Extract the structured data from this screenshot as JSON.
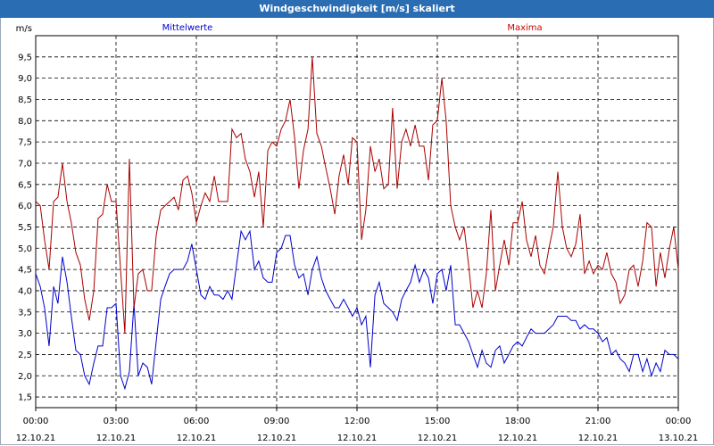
{
  "window": {
    "title": "Windgeschwindigkeit [m/s] skaliert"
  },
  "legend": {
    "series1": "Mittelwerte",
    "series2": "Maxima"
  },
  "colors": {
    "titlebar": "#2a6db2",
    "mittelwerte": "#0000cc",
    "maxima": "#aa0000",
    "grid": "#000000"
  },
  "chart_data": {
    "type": "line",
    "ylabel": "m/s",
    "ylim": [
      1.25,
      10.0
    ],
    "yticks": [
      1.5,
      2.0,
      2.5,
      3.0,
      3.5,
      4.0,
      4.5,
      5.0,
      5.5,
      6.0,
      6.5,
      7.0,
      7.5,
      8.0,
      8.5,
      9.0,
      9.5
    ],
    "ytick_labels": [
      "1,5",
      "2,0",
      "2,5",
      "3,0",
      "3,5",
      "4,0",
      "4,5",
      "5,0",
      "5,5",
      "6,0",
      "6,5",
      "7,0",
      "7,5",
      "8,0",
      "8,5",
      "9,0",
      "9,5"
    ],
    "xlim_hours": [
      0,
      24
    ],
    "xticks": [
      {
        "h": 0,
        "time": "00:00",
        "date": "12.10.21"
      },
      {
        "h": 3,
        "time": "03:00",
        "date": "12.10.21"
      },
      {
        "h": 6,
        "time": "06:00",
        "date": "12.10.21"
      },
      {
        "h": 9,
        "time": "09:00",
        "date": "12.10.21"
      },
      {
        "h": 12,
        "time": "12:00",
        "date": "12.10.21"
      },
      {
        "h": 15,
        "time": "15:00",
        "date": "12.10.21"
      },
      {
        "h": 18,
        "time": "18:00",
        "date": "12.10.21"
      },
      {
        "h": 21,
        "time": "21:00",
        "date": "12.10.21"
      },
      {
        "h": 24,
        "time": "00:00",
        "date": "13.10.21"
      }
    ],
    "series": [
      {
        "name": "Mittelwerte",
        "x": [
          0.0,
          0.17,
          0.33,
          0.5,
          0.67,
          0.83,
          1.0,
          1.17,
          1.33,
          1.5,
          1.67,
          1.83,
          2.0,
          2.17,
          2.33,
          2.5,
          2.67,
          2.83,
          3.0,
          3.17,
          3.33,
          3.5,
          3.67,
          3.83,
          4.0,
          4.17,
          4.33,
          4.5,
          4.67,
          4.83,
          5.0,
          5.17,
          5.33,
          5.5,
          5.67,
          5.83,
          6.0,
          6.17,
          6.33,
          6.5,
          6.67,
          6.83,
          7.0,
          7.17,
          7.33,
          7.5,
          7.67,
          7.83,
          8.0,
          8.17,
          8.33,
          8.5,
          8.67,
          8.83,
          9.0,
          9.17,
          9.33,
          9.5,
          9.67,
          9.83,
          10.0,
          10.17,
          10.33,
          10.5,
          10.67,
          10.83,
          11.0,
          11.17,
          11.33,
          11.5,
          11.67,
          11.83,
          12.0,
          12.17,
          12.33,
          12.5,
          12.67,
          12.83,
          13.0,
          13.17,
          13.33,
          13.5,
          13.67,
          13.83,
          14.0,
          14.17,
          14.33,
          14.5,
          14.67,
          14.83,
          15.0,
          15.17,
          15.33,
          15.5,
          15.67,
          15.83,
          16.0,
          16.17,
          16.33,
          16.5,
          16.67,
          16.83,
          17.0,
          17.17,
          17.33,
          17.5,
          17.67,
          17.83,
          18.0,
          18.17,
          18.33,
          18.5,
          18.67,
          18.83,
          19.0,
          19.17,
          19.33,
          19.5,
          19.67,
          19.83,
          20.0,
          20.17,
          20.33,
          20.5,
          20.67,
          20.83,
          21.0,
          21.17,
          21.33,
          21.5,
          21.67,
          21.83,
          22.0,
          22.17,
          22.33,
          22.5,
          22.67,
          22.83,
          23.0,
          23.17,
          23.33,
          23.5,
          23.67,
          23.83,
          24.0
        ],
        "values": [
          4.4,
          4.1,
          3.6,
          2.7,
          4.1,
          3.7,
          4.8,
          4.2,
          3.4,
          2.6,
          2.5,
          2.0,
          1.8,
          2.3,
          2.7,
          2.7,
          3.6,
          3.6,
          3.7,
          2.0,
          1.7,
          2.1,
          3.7,
          2.0,
          2.3,
          2.2,
          1.8,
          2.8,
          3.8,
          4.1,
          4.4,
          4.5,
          4.5,
          4.5,
          4.7,
          5.1,
          4.5,
          3.9,
          3.8,
          4.1,
          3.9,
          3.9,
          3.8,
          4.0,
          3.8,
          4.6,
          5.4,
          5.2,
          5.4,
          4.5,
          4.7,
          4.3,
          4.2,
          4.2,
          4.9,
          5.0,
          5.3,
          5.3,
          4.6,
          4.3,
          4.4,
          3.9,
          4.5,
          4.8,
          4.3,
          4.0,
          3.8,
          3.6,
          3.6,
          3.8,
          3.6,
          3.4,
          3.6,
          3.2,
          3.4,
          2.2,
          3.9,
          4.2,
          3.7,
          3.6,
          3.5,
          3.3,
          3.8,
          4.0,
          4.2,
          4.6,
          4.2,
          4.5,
          4.3,
          3.7,
          4.4,
          4.5,
          4.0,
          4.6,
          3.2,
          3.2,
          3.0,
          2.8,
          2.5,
          2.2,
          2.6,
          2.3,
          2.2,
          2.6,
          2.7,
          2.3,
          2.5,
          2.7,
          2.8,
          2.7,
          2.9,
          3.1,
          3.0,
          3.0,
          3.0,
          3.1,
          3.2,
          3.4,
          3.4,
          3.4,
          3.3,
          3.3,
          3.1,
          3.2,
          3.1,
          3.1,
          3.0,
          2.8,
          2.9,
          2.5,
          2.6,
          2.4,
          2.3,
          2.1,
          2.5,
          2.5,
          2.1,
          2.4,
          2.0,
          2.3,
          2.1,
          2.6,
          2.5,
          2.5,
          2.4
        ]
      },
      {
        "name": "Maxima",
        "x": [
          0.0,
          0.17,
          0.33,
          0.5,
          0.67,
          0.83,
          1.0,
          1.17,
          1.33,
          1.5,
          1.67,
          1.83,
          2.0,
          2.17,
          2.33,
          2.5,
          2.67,
          2.83,
          3.0,
          3.17,
          3.33,
          3.5,
          3.67,
          3.83,
          4.0,
          4.17,
          4.33,
          4.5,
          4.67,
          4.83,
          5.0,
          5.17,
          5.33,
          5.5,
          5.67,
          5.83,
          6.0,
          6.17,
          6.33,
          6.5,
          6.67,
          6.83,
          7.0,
          7.17,
          7.33,
          7.5,
          7.67,
          7.83,
          8.0,
          8.17,
          8.33,
          8.5,
          8.67,
          8.83,
          9.0,
          9.17,
          9.33,
          9.5,
          9.67,
          9.83,
          10.0,
          10.17,
          10.33,
          10.5,
          10.67,
          10.83,
          11.0,
          11.17,
          11.33,
          11.5,
          11.67,
          11.83,
          12.0,
          12.17,
          12.33,
          12.5,
          12.67,
          12.83,
          13.0,
          13.17,
          13.33,
          13.5,
          13.67,
          13.83,
          14.0,
          14.17,
          14.33,
          14.5,
          14.67,
          14.83,
          15.0,
          15.17,
          15.33,
          15.5,
          15.67,
          15.83,
          16.0,
          16.17,
          16.33,
          16.5,
          16.67,
          16.83,
          17.0,
          17.17,
          17.33,
          17.5,
          17.67,
          17.83,
          18.0,
          18.17,
          18.33,
          18.5,
          18.67,
          18.83,
          19.0,
          19.17,
          19.33,
          19.5,
          19.67,
          19.83,
          20.0,
          20.17,
          20.33,
          20.5,
          20.67,
          20.83,
          21.0,
          21.17,
          21.33,
          21.5,
          21.67,
          21.83,
          22.0,
          22.17,
          22.33,
          22.5,
          22.67,
          22.83,
          23.0,
          23.17,
          23.33,
          23.5,
          23.67,
          23.83,
          24.0
        ],
        "values": [
          6.1,
          6.0,
          5.2,
          4.5,
          6.1,
          6.2,
          7.0,
          6.1,
          5.6,
          4.9,
          4.6,
          3.8,
          3.3,
          4.0,
          5.7,
          5.8,
          6.5,
          6.1,
          6.1,
          4.5,
          3.0,
          7.1,
          3.6,
          4.4,
          4.5,
          4.0,
          4.0,
          5.3,
          5.9,
          6.0,
          6.1,
          6.2,
          5.9,
          6.6,
          6.7,
          6.3,
          5.6,
          6.0,
          6.3,
          6.1,
          6.7,
          6.1,
          6.1,
          6.1,
          7.8,
          7.6,
          7.7,
          7.1,
          6.8,
          6.2,
          6.8,
          5.5,
          7.3,
          7.5,
          7.4,
          7.8,
          8.0,
          8.5,
          7.6,
          6.4,
          7.3,
          7.8,
          9.5,
          7.7,
          7.4,
          6.9,
          6.4,
          5.8,
          6.7,
          7.2,
          6.5,
          7.6,
          7.5,
          5.2,
          5.9,
          7.4,
          6.8,
          7.1,
          6.4,
          6.5,
          8.3,
          6.4,
          7.5,
          7.8,
          7.4,
          7.9,
          7.4,
          7.4,
          6.6,
          7.9,
          8.0,
          9.0,
          8.0,
          6.0,
          5.5,
          5.2,
          5.5,
          4.6,
          3.6,
          4.0,
          3.6,
          4.4,
          5.9,
          4.0,
          4.6,
          5.2,
          4.6,
          5.6,
          5.6,
          6.1,
          5.2,
          4.8,
          5.3,
          4.6,
          4.4,
          5.0,
          5.5,
          6.8,
          5.5,
          5.0,
          4.8,
          5.1,
          5.8,
          4.4,
          4.7,
          4.4,
          4.6,
          4.5,
          4.9,
          4.4,
          4.2,
          3.7,
          3.9,
          4.5,
          4.6,
          4.1,
          4.7,
          5.6,
          5.5,
          4.1,
          4.9,
          4.3,
          5.0,
          5.5,
          4.5
        ]
      }
    ]
  }
}
